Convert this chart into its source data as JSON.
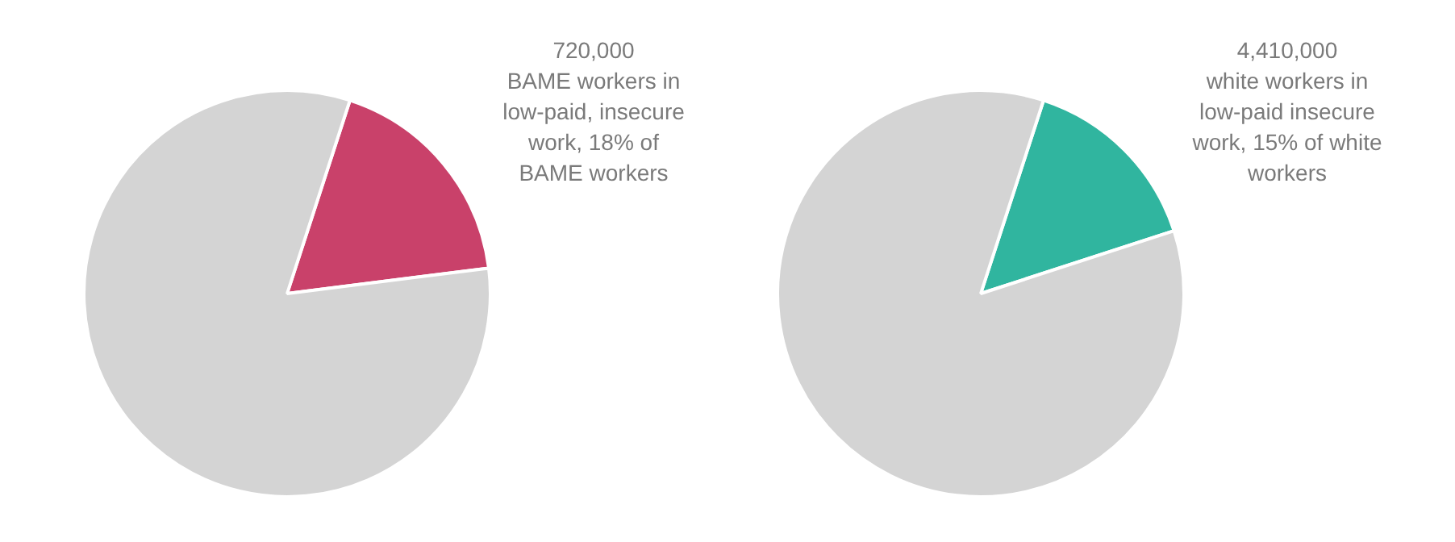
{
  "chart_data": [
    {
      "type": "pie",
      "categories": [
        null,
        null
      ],
      "values": [
        18,
        82
      ],
      "colors": [
        "#c9416a",
        "#d4d4d4"
      ],
      "annotations": [
        "720,000\nBAME workers in\nlow-paid, insecure\nwork, 18% of\nBAME workers"
      ],
      "legend": false
    },
    {
      "type": "pie",
      "categories": [
        null,
        null
      ],
      "values": [
        15,
        85
      ],
      "colors": [
        "#30b59f",
        "#d4d4d4"
      ],
      "annotations": [
        "4,410,000\nwhite workers in\nlow-paid insecure\nwork, 15% of white\nworkers"
      ],
      "legend": false
    }
  ]
}
